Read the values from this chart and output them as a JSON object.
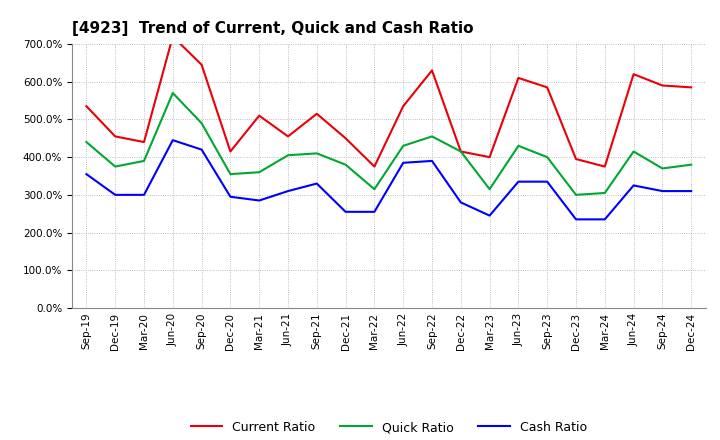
{
  "title": "[4923]  Trend of Current, Quick and Cash Ratio",
  "labels": [
    "Sep-19",
    "Dec-19",
    "Mar-20",
    "Jun-20",
    "Sep-20",
    "Dec-20",
    "Mar-21",
    "Jun-21",
    "Sep-21",
    "Dec-21",
    "Mar-22",
    "Jun-22",
    "Sep-22",
    "Dec-22",
    "Mar-23",
    "Jun-23",
    "Sep-23",
    "Dec-23",
    "Mar-24",
    "Jun-24",
    "Sep-24",
    "Dec-24"
  ],
  "current_ratio": [
    535,
    455,
    440,
    720,
    645,
    415,
    510,
    455,
    515,
    450,
    375,
    535,
    630,
    415,
    400,
    610,
    585,
    395,
    375,
    620,
    590,
    585
  ],
  "quick_ratio": [
    440,
    375,
    390,
    570,
    490,
    355,
    360,
    405,
    410,
    380,
    315,
    430,
    455,
    415,
    315,
    430,
    400,
    300,
    305,
    415,
    370,
    380
  ],
  "cash_ratio": [
    355,
    300,
    300,
    445,
    420,
    295,
    285,
    310,
    330,
    255,
    255,
    385,
    390,
    280,
    245,
    335,
    335,
    235,
    235,
    325,
    310,
    310
  ],
  "ylim": [
    0,
    700
  ],
  "yticks": [
    0,
    100,
    200,
    300,
    400,
    500,
    600,
    700
  ],
  "current_color": "#e8000a",
  "quick_color": "#00a832",
  "cash_color": "#0000ff",
  "bg_color": "#ffffff",
  "grid_color": "#aaaaaa",
  "linewidth": 1.5,
  "title_fontsize": 11,
  "legend_fontsize": 9,
  "tick_fontsize": 7.5
}
